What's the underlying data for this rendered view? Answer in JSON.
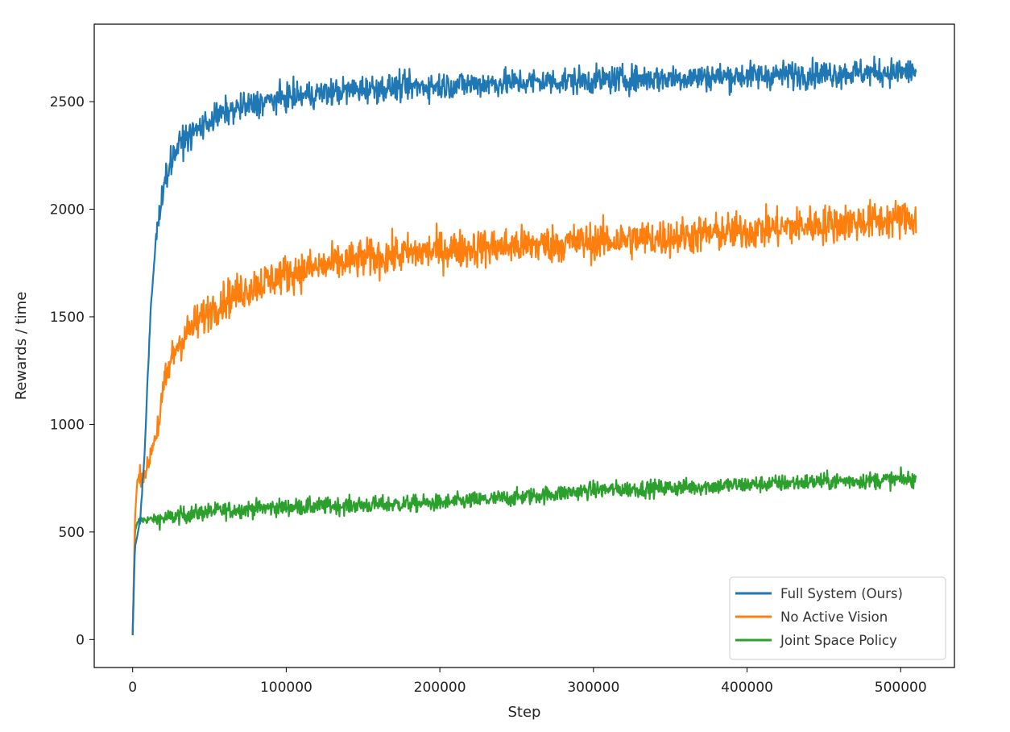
{
  "chart_data": {
    "type": "line",
    "title": "",
    "xlabel": "Step",
    "ylabel": "Rewards / time",
    "xlim": [
      -25000,
      535000
    ],
    "ylim": [
      -130,
      2860
    ],
    "xticks": [
      0,
      100000,
      200000,
      300000,
      400000,
      500000
    ],
    "xtick_labels": [
      "0",
      "100000",
      "200000",
      "300000",
      "400000",
      "500000"
    ],
    "yticks": [
      0,
      500,
      1000,
      1500,
      2000,
      2500
    ],
    "ytick_labels": [
      "0",
      "500",
      "1000",
      "1500",
      "2000",
      "2500"
    ],
    "grid": false,
    "legend_position": "lower-right",
    "series": [
      {
        "name": "Full System (Ours)",
        "color": "#1f77b4",
        "noise": 32,
        "x": [
          0,
          1500,
          3000,
          5000,
          8000,
          10000,
          12000,
          15000,
          18000,
          20000,
          25000,
          30000,
          40000,
          50000,
          60000,
          80000,
          100000,
          120000,
          150000,
          200000,
          250000,
          300000,
          350000,
          400000,
          450000,
          510000
        ],
        "y": [
          20,
          430,
          480,
          560,
          900,
          1250,
          1550,
          1850,
          2000,
          2120,
          2220,
          2300,
          2360,
          2410,
          2450,
          2490,
          2520,
          2535,
          2560,
          2575,
          2590,
          2600,
          2610,
          2620,
          2630,
          2640
        ]
      },
      {
        "name": "No Active Vision",
        "color": "#ff7f0e",
        "noise": 45,
        "x": [
          0,
          1500,
          3000,
          5000,
          8000,
          10000,
          12000,
          15000,
          18000,
          20000,
          25000,
          30000,
          40000,
          50000,
          60000,
          80000,
          100000,
          120000,
          150000,
          200000,
          250000,
          300000,
          350000,
          400000,
          450000,
          510000
        ],
        "y": [
          20,
          560,
          740,
          765,
          775,
          800,
          880,
          950,
          1050,
          1150,
          1300,
          1380,
          1460,
          1530,
          1580,
          1650,
          1700,
          1730,
          1770,
          1810,
          1830,
          1850,
          1870,
          1900,
          1930,
          1960
        ]
      },
      {
        "name": "Joint Space Policy",
        "color": "#2ca02c",
        "noise": 20,
        "x": [
          0,
          1500,
          3000,
          5000,
          10000,
          20000,
          30000,
          50000,
          80000,
          100000,
          150000,
          200000,
          250000,
          300000,
          350000,
          400000,
          450000,
          510000
        ],
        "y": [
          20,
          500,
          545,
          555,
          558,
          562,
          575,
          595,
          610,
          615,
          625,
          635,
          660,
          695,
          705,
          720,
          735,
          745
        ]
      }
    ]
  }
}
